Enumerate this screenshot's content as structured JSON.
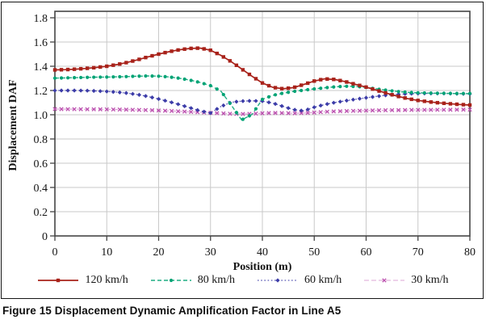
{
  "figure": {
    "caption_label": "Figure 15",
    "caption_text": "Displacement Dynamic Amplification Factor in Line A5"
  },
  "chart_data": {
    "type": "line",
    "title": "",
    "xlabel": "Position (m)",
    "ylabel": "Displacement DAF",
    "xlim": [
      0,
      80
    ],
    "ylim": [
      0,
      1.8
    ],
    "x_ticks": [
      "0",
      "10",
      "20",
      "30",
      "40",
      "50",
      "60",
      "70",
      "80"
    ],
    "y_ticks": [
      "0",
      "0.2",
      "0.4",
      "0.6",
      "0.8",
      "1.0",
      "1.2",
      "1.4",
      "1.6",
      "1.8"
    ],
    "grid": true,
    "legend_position": "bottom",
    "x_start": 0,
    "x_step": 2,
    "series": [
      {
        "name": "120 km/h",
        "color": "#a8221a",
        "line_color": "#a8221a",
        "line": "solid",
        "marker": "square",
        "values": [
          1.37,
          1.372,
          1.376,
          1.382,
          1.39,
          1.4,
          1.414,
          1.432,
          1.454,
          1.478,
          1.5,
          1.52,
          1.536,
          1.547,
          1.55,
          1.532,
          1.49,
          1.438,
          1.378,
          1.318,
          1.262,
          1.226,
          1.214,
          1.224,
          1.25,
          1.278,
          1.296,
          1.291,
          1.273,
          1.25,
          1.228,
          1.202,
          1.177,
          1.153,
          1.133,
          1.118,
          1.107,
          1.098,
          1.091,
          1.085,
          1.08
        ]
      },
      {
        "name": "80 km/h",
        "color": "#00a375",
        "line_color": "#1fae83",
        "line": "dashed",
        "marker": "circle",
        "values": [
          1.302,
          1.304,
          1.306,
          1.308,
          1.31,
          1.311,
          1.313,
          1.315,
          1.318,
          1.32,
          1.318,
          1.312,
          1.301,
          1.286,
          1.266,
          1.24,
          1.195,
          1.08,
          0.957,
          1.002,
          1.127,
          1.16,
          1.178,
          1.192,
          1.203,
          1.213,
          1.222,
          1.23,
          1.235,
          1.233,
          1.226,
          1.213,
          1.202,
          1.192,
          1.185,
          1.181,
          1.179,
          1.177,
          1.176,
          1.175,
          1.175
        ]
      },
      {
        "name": "60 km/h",
        "color": "#3c3ca8",
        "line_color": "#5656b4",
        "line": "dotted",
        "marker": "diamond",
        "values": [
          1.2,
          1.2,
          1.2,
          1.199,
          1.196,
          1.192,
          1.186,
          1.178,
          1.166,
          1.15,
          1.13,
          1.108,
          1.084,
          1.058,
          1.032,
          1.014,
          1.068,
          1.103,
          1.112,
          1.115,
          1.112,
          1.096,
          1.068,
          1.042,
          1.032,
          1.062,
          1.084,
          1.101,
          1.115,
          1.128,
          1.14,
          1.151,
          1.161,
          1.169,
          1.173,
          1.175,
          1.176,
          1.176,
          1.175,
          1.173,
          1.172
        ]
      },
      {
        "name": "30 km/h",
        "color": "#bb4fae",
        "line_color": "#dca4d6",
        "line": "dash-dot",
        "marker": "x",
        "values": [
          1.047,
          1.046,
          1.046,
          1.045,
          1.045,
          1.044,
          1.043,
          1.042,
          1.04,
          1.038,
          1.035,
          1.032,
          1.028,
          1.024,
          1.02,
          1.016,
          1.012,
          1.008,
          1.006,
          1.008,
          1.012,
          1.015,
          1.014,
          1.012,
          1.014,
          1.018,
          1.024,
          1.028,
          1.03,
          1.032,
          1.034,
          1.036,
          1.037,
          1.038,
          1.039,
          1.04,
          1.04,
          1.041,
          1.041,
          1.042,
          1.042
        ]
      }
    ]
  },
  "style_colors": {
    "grid": "#c9c9c9",
    "axis": "#454545",
    "frame": "#161616",
    "text": "#141414"
  }
}
